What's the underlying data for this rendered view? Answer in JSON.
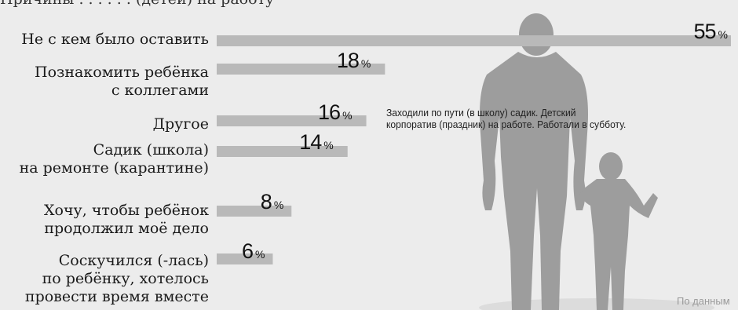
{
  "chart_data": {
    "type": "bar",
    "orientation": "horizontal",
    "categories": [
      "Не с кем было оставить",
      "Познакомить ребёнка\nс коллегами",
      "Другое",
      "Садик (школа)\nна ремонте (карантине)",
      "Хочу, чтобы ребёнок\nпродолжил моё дело",
      "Соскучился (-лась)\nпо ребёнку, хотелось\nпровести время вместе"
    ],
    "values": [
      55,
      18,
      16,
      14,
      8,
      6
    ],
    "value_unit": "%",
    "annotation": "Заходили по пути (в школу) садик. Детский корпоратив (праздник) на работе. Работали в субботу.",
    "source": "По данным",
    "top_text": "Причины . . . . . . (детей) на работу",
    "bar_color": "#b9b9b9",
    "figure_color": "#9d9d9d"
  }
}
